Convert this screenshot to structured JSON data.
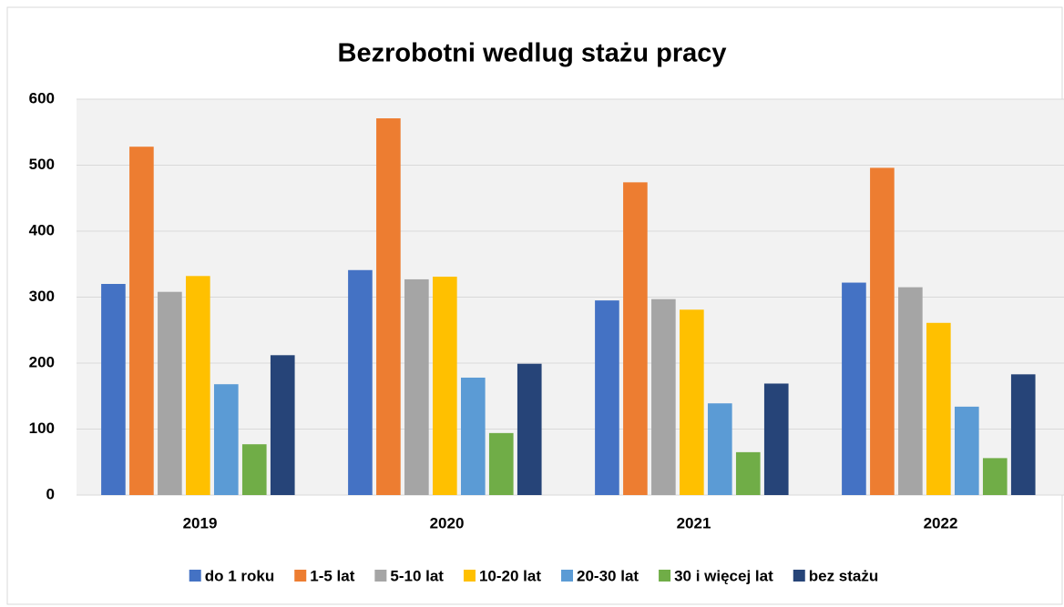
{
  "chart_data": {
    "type": "bar",
    "title": "Bezrobotni wedlug stażu pracy",
    "categories": [
      "2019",
      "2020",
      "2021",
      "2022"
    ],
    "series": [
      {
        "name": "do 1 roku",
        "color": "#4472c4",
        "values": [
          320,
          341,
          295,
          322
        ]
      },
      {
        "name": "1-5 lat",
        "color": "#ed7d31",
        "values": [
          528,
          571,
          474,
          496
        ]
      },
      {
        "name": "5-10 lat",
        "color": "#a5a5a5",
        "values": [
          308,
          327,
          297,
          315
        ]
      },
      {
        "name": "10-20 lat",
        "color": "#ffc000",
        "values": [
          332,
          331,
          281,
          261
        ]
      },
      {
        "name": "20-30 lat",
        "color": "#5b9bd5",
        "values": [
          168,
          178,
          139,
          134
        ]
      },
      {
        "name": "30 i więcej lat",
        "color": "#70ad47",
        "values": [
          77,
          94,
          65,
          56
        ]
      },
      {
        "name": "bez stażu",
        "color": "#264478",
        "values": [
          212,
          199,
          169,
          183
        ]
      }
    ],
    "ylim": [
      0,
      600
    ],
    "yticks": [
      0,
      100,
      200,
      300,
      400,
      500,
      600
    ],
    "grid": true,
    "legend": "bottom"
  }
}
